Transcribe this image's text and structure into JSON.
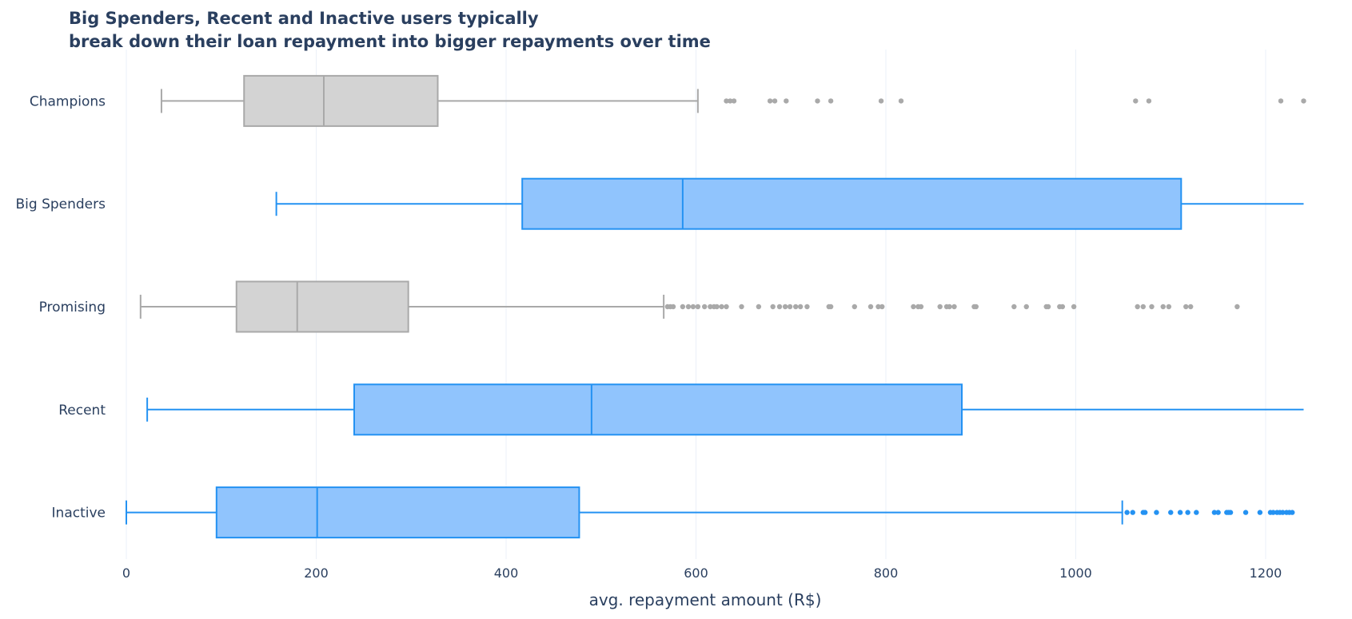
{
  "chart_data": {
    "type": "box",
    "title": [
      "Big Spenders, Recent and Inactive users typically",
      "break down their loan repayment into bigger repayments over time"
    ],
    "xlabel": "avg. repayment amount (R$)",
    "ylabel": "",
    "xlim": [
      0,
      1240
    ],
    "xticks": [
      0,
      200,
      400,
      600,
      800,
      1000,
      1200
    ],
    "grid": "vertical",
    "colors": {
      "highlight_fill": "#90c4fd",
      "highlight_line": "#2492f2",
      "muted_fill": "#d3d3d3",
      "muted_line": "#a9a9a9",
      "text": "#2a3f5f"
    },
    "series": [
      {
        "name": "Champions",
        "highlight": false,
        "whisker_low": 37,
        "q1": 124,
        "median": 208,
        "q3": 328,
        "whisker_high": 602,
        "outliers": [
          632,
          636,
          640,
          678,
          683,
          695,
          728,
          742,
          795,
          816,
          1063,
          1077,
          1216,
          1240
        ]
      },
      {
        "name": "Big Spenders",
        "highlight": true,
        "whisker_low": 158,
        "q1": 417,
        "median": 586,
        "q3": 1111,
        "whisker_high": 1240,
        "outliers": []
      },
      {
        "name": "Promising",
        "highlight": false,
        "whisker_low": 15,
        "q1": 116,
        "median": 180,
        "q3": 297,
        "whisker_high": 566,
        "outliers": [
          570,
          573,
          576,
          586,
          592,
          597,
          602,
          609,
          615,
          619,
          622,
          627,
          632,
          648,
          666,
          681,
          688,
          694,
          699,
          705,
          710,
          717,
          740,
          742,
          767,
          784,
          792,
          796,
          829,
          834,
          837,
          857,
          864,
          867,
          872,
          893,
          895,
          935,
          948,
          969,
          971,
          983,
          986,
          998,
          1065,
          1071,
          1080,
          1092,
          1098,
          1116,
          1121,
          1170
        ]
      },
      {
        "name": "Recent",
        "highlight": true,
        "whisker_low": 22,
        "q1": 240,
        "median": 490,
        "q3": 880,
        "whisker_high": 1240,
        "outliers": []
      },
      {
        "name": "Inactive",
        "highlight": true,
        "whisker_low": 0,
        "q1": 95,
        "median": 201,
        "q3": 477,
        "whisker_high": 1049,
        "outliers": [
          1054,
          1060,
          1071,
          1073,
          1085,
          1100,
          1110,
          1118,
          1127,
          1146,
          1150,
          1159,
          1161,
          1163,
          1179,
          1194,
          1205,
          1208,
          1212,
          1215,
          1218,
          1222,
          1225,
          1228
        ]
      }
    ]
  }
}
